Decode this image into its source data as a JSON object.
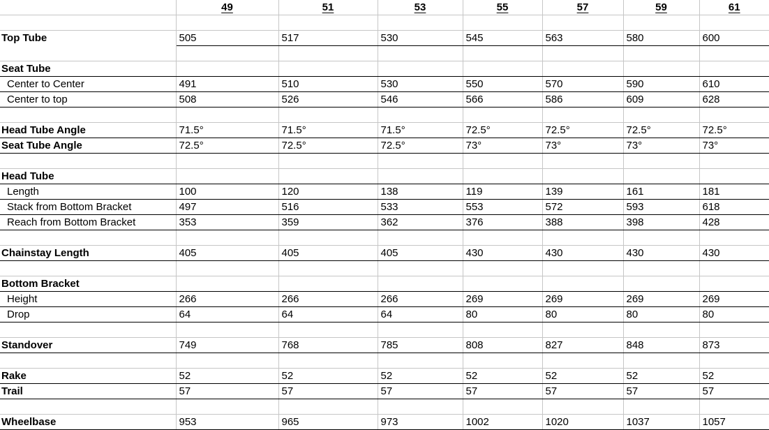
{
  "sheet": {
    "sizes": [
      "49",
      "51",
      "53",
      "55",
      "57",
      "59",
      "61"
    ],
    "rows": [
      {
        "kind": "header"
      },
      {
        "kind": "spacer"
      },
      {
        "kind": "row",
        "key": "top-tube",
        "label": "Top Tube",
        "bold": true,
        "values": [
          "505",
          "517",
          "530",
          "545",
          "563",
          "580",
          "600"
        ],
        "border": "data"
      },
      {
        "kind": "spacer"
      },
      {
        "kind": "section",
        "key": "seat-tube",
        "label": "Seat Tube",
        "border": "full"
      },
      {
        "kind": "row",
        "key": "center-to-center",
        "label": "Center to Center",
        "indent": true,
        "values": [
          "491",
          "510",
          "530",
          "550",
          "570",
          "590",
          "610"
        ],
        "border": "full"
      },
      {
        "kind": "row",
        "key": "center-to-top",
        "label": "Center to top",
        "indent": true,
        "values": [
          "508",
          "526",
          "546",
          "566",
          "586",
          "609",
          "628"
        ],
        "border": "full"
      },
      {
        "kind": "spacer"
      },
      {
        "kind": "row",
        "key": "head-tube-angle",
        "label": "Head Tube Angle",
        "bold": true,
        "values": [
          "71.5°",
          "71.5°",
          "71.5°",
          "72.5°",
          "72.5°",
          "72.5°",
          "72.5°"
        ],
        "border": "full"
      },
      {
        "kind": "row",
        "key": "seat-tube-angle",
        "label": "Seat Tube Angle",
        "bold": true,
        "values": [
          "72.5°",
          "72.5°",
          "72.5°",
          "73°",
          "73°",
          "73°",
          "73°"
        ],
        "border": "full"
      },
      {
        "kind": "spacer"
      },
      {
        "kind": "section",
        "key": "head-tube",
        "label": "Head Tube",
        "border": "full"
      },
      {
        "kind": "row",
        "key": "length",
        "label": "Length",
        "indent": true,
        "values": [
          "100",
          "120",
          "138",
          "119",
          "139",
          "161",
          "181"
        ],
        "border": "full"
      },
      {
        "kind": "row",
        "key": "stack-from-bottom-bracket",
        "label": "Stack from Bottom Bracket",
        "indent": true,
        "values": [
          "497",
          "516",
          "533",
          "553",
          "572",
          "593",
          "618"
        ],
        "border": "full"
      },
      {
        "kind": "row",
        "key": "reach-from-bottom-bracket",
        "label": "Reach from Bottom Bracket",
        "indent": true,
        "values": [
          "353",
          "359",
          "362",
          "376",
          "388",
          "398",
          "428"
        ],
        "border": "full"
      },
      {
        "kind": "spacer"
      },
      {
        "kind": "row",
        "key": "chainstay-length",
        "label": "Chainstay Length",
        "bold": true,
        "values": [
          "405",
          "405",
          "405",
          "430",
          "430",
          "430",
          "430"
        ],
        "border": "full"
      },
      {
        "kind": "spacer"
      },
      {
        "kind": "section",
        "key": "bottom-bracket",
        "label": "Bottom Bracket",
        "border": "full"
      },
      {
        "kind": "row",
        "key": "height",
        "label": "Height",
        "indent": true,
        "values": [
          "266",
          "266",
          "266",
          "269",
          "269",
          "269",
          "269"
        ],
        "border": "full"
      },
      {
        "kind": "row",
        "key": "drop",
        "label": "Drop",
        "indent": true,
        "values": [
          "64",
          "64",
          "64",
          "80",
          "80",
          "80",
          "80"
        ],
        "border": "full"
      },
      {
        "kind": "spacer"
      },
      {
        "kind": "row",
        "key": "standover",
        "label": "Standover",
        "bold": true,
        "values": [
          "749",
          "768",
          "785",
          "808",
          "827",
          "848",
          "873"
        ],
        "border": "full"
      },
      {
        "kind": "spacer"
      },
      {
        "kind": "row",
        "key": "rake",
        "label": "Rake",
        "bold": true,
        "values": [
          "52",
          "52",
          "52",
          "52",
          "52",
          "52",
          "52"
        ],
        "border": "full"
      },
      {
        "kind": "row",
        "key": "trail",
        "label": "Trail",
        "bold": true,
        "values": [
          "57",
          "57",
          "57",
          "57",
          "57",
          "57",
          "57"
        ],
        "border": "full"
      },
      {
        "kind": "spacer"
      },
      {
        "kind": "row",
        "key": "wheelbase",
        "label": "Wheelbase",
        "bold": true,
        "values": [
          "953",
          "965",
          "973",
          "1002",
          "1020",
          "1037",
          "1057"
        ],
        "border": "full"
      }
    ],
    "colors": {
      "grid_line": "#c6c6c6",
      "section_border": "#000000",
      "text": "#000000",
      "background": "#ffffff"
    }
  }
}
